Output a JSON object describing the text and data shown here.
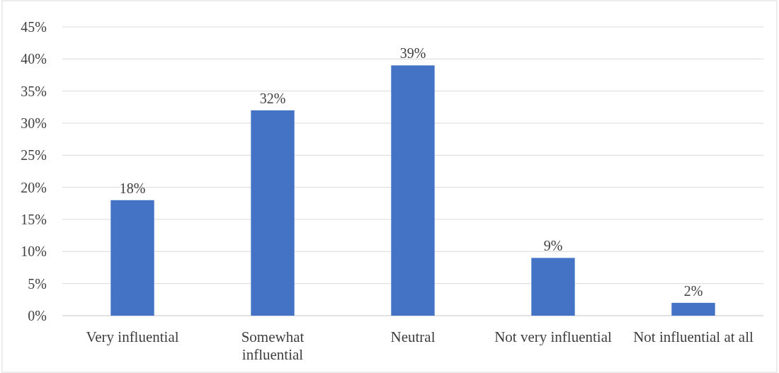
{
  "chart_data": {
    "type": "bar",
    "categories": [
      "Very influential",
      "Somewhat influential",
      "Neutral",
      "Not very influential",
      "Not influential at all"
    ],
    "values": [
      18,
      32,
      39,
      9,
      2
    ],
    "value_labels": [
      "18%",
      "32%",
      "39%",
      "9%",
      "2%"
    ],
    "color": "#4472c4",
    "ylim": [
      0,
      45
    ],
    "yticks": [
      {
        "value": 0,
        "label": "0%"
      },
      {
        "value": 5,
        "label": "5%"
      },
      {
        "value": 10,
        "label": "10%"
      },
      {
        "value": 15,
        "label": "15%"
      },
      {
        "value": 20,
        "label": "20%"
      },
      {
        "value": 25,
        "label": "25%"
      },
      {
        "value": 30,
        "label": "30%"
      },
      {
        "value": 35,
        "label": "35%"
      },
      {
        "value": 40,
        "label": "40%"
      },
      {
        "value": 45,
        "label": "45%"
      }
    ],
    "grid": "y"
  }
}
